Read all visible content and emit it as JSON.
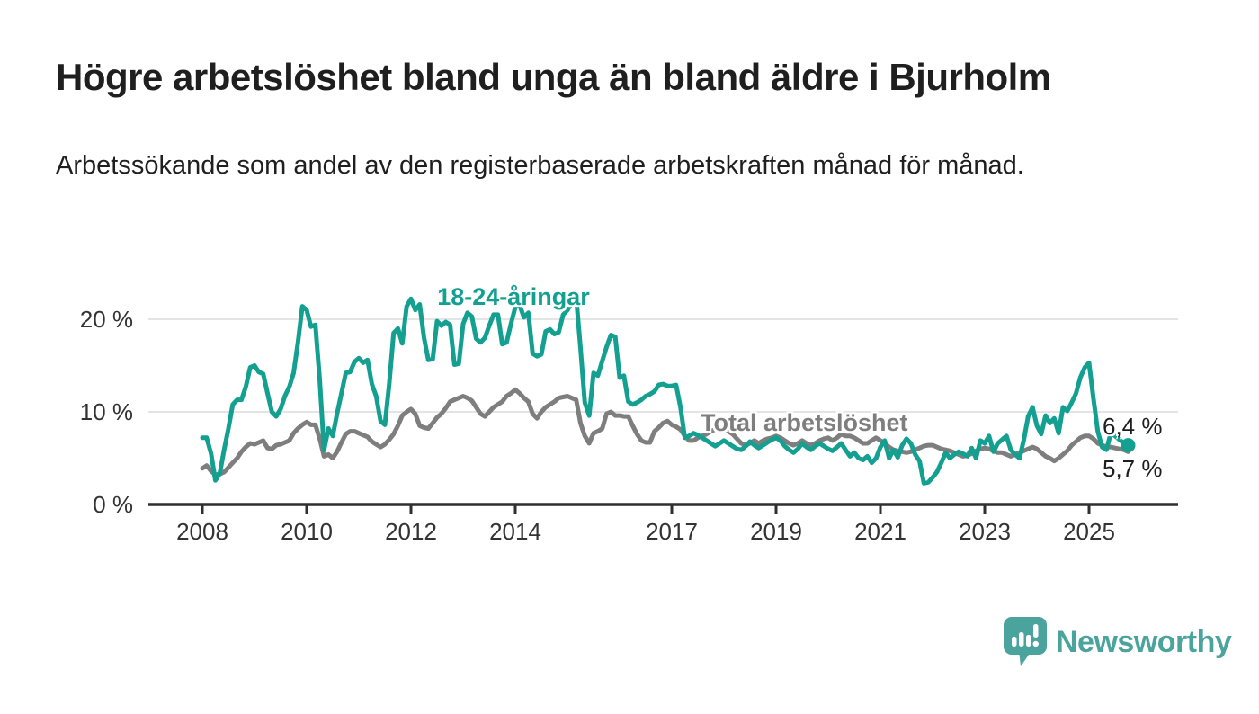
{
  "header": {
    "title": "Högre arbetslöshet bland unga än bland äldre i Bjurholm",
    "subtitle": "Arbetssökande som andel av den registerbaserade arbetskraften månad för månad."
  },
  "colors": {
    "young_teal": "#14a091",
    "total_gray": "#7e7e7e",
    "logo_teal": "#4ba39d",
    "text_dark": "#1e1e1e",
    "axis_dark": "#2f2f2f",
    "gridline_gray": "#dcdcdc"
  },
  "chart_data": {
    "type": "line",
    "title": "Högre arbetslöshet bland unga än bland äldre i Bjurholm",
    "unit": "%",
    "frequency": "monthly",
    "x_start_year": 2008,
    "x_start_month": 1,
    "x_end": "2025-10",
    "x_tick_years": [
      2008,
      2010,
      2012,
      2014,
      2017,
      2019,
      2021,
      2023,
      2025
    ],
    "y_ticks": [
      {
        "value": 0,
        "label": "0 %"
      },
      {
        "value": 10,
        "label": "10 %"
      },
      {
        "value": 20,
        "label": "20 %"
      }
    ],
    "ylim": [
      0,
      23
    ],
    "grid": "horizontal",
    "legend_position": "inline-labels",
    "series": [
      {
        "name": "Total arbetslöshet",
        "color": "#7e7e7e",
        "end_label": "5,7 %",
        "end_dot": false,
        "values": [
          3.9,
          4.2,
          3.6,
          3.2,
          3.3,
          3.5,
          4.0,
          4.5,
          5.0,
          5.7,
          6.2,
          6.6,
          6.5,
          6.7,
          6.9,
          6.1,
          6.0,
          6.4,
          6.5,
          6.7,
          6.9,
          7.7,
          8.2,
          8.6,
          8.9,
          8.6,
          8.6,
          7.1,
          5.2,
          5.4,
          5.0,
          5.7,
          6.7,
          7.6,
          7.9,
          7.9,
          7.7,
          7.5,
          7.3,
          6.8,
          6.5,
          6.2,
          6.5,
          7.0,
          7.6,
          8.5,
          9.6,
          10.0,
          10.3,
          9.8,
          8.5,
          8.3,
          8.2,
          8.8,
          9.4,
          9.8,
          10.4,
          11.1,
          11.3,
          11.5,
          11.7,
          11.5,
          11.2,
          10.5,
          9.8,
          9.5,
          10.0,
          10.5,
          10.8,
          11.1,
          11.7,
          12.0,
          12.4,
          12.0,
          11.5,
          11.1,
          9.8,
          9.3,
          10.0,
          10.5,
          10.8,
          11.1,
          11.5,
          11.6,
          11.7,
          11.5,
          11.3,
          8.8,
          7.4,
          6.6,
          7.7,
          7.9,
          8.2,
          9.8,
          10.0,
          9.6,
          9.6,
          9.5,
          9.5,
          8.5,
          7.6,
          6.9,
          6.7,
          6.7,
          7.9,
          8.3,
          8.8,
          9.0,
          8.6,
          8.4,
          8.1,
          7.4,
          6.9,
          6.9,
          7.2,
          7.4,
          7.6,
          7.9,
          8.1,
          8.2,
          8.2,
          7.9,
          7.6,
          7.1,
          6.6,
          6.4,
          6.6,
          6.9,
          6.6,
          6.9,
          7.1,
          7.2,
          7.4,
          7.2,
          6.9,
          6.6,
          6.4,
          6.6,
          6.9,
          6.6,
          6.4,
          6.6,
          6.9,
          7.1,
          7.2,
          6.9,
          7.2,
          7.6,
          7.4,
          7.4,
          7.2,
          6.9,
          6.6,
          6.6,
          6.9,
          7.2,
          6.9,
          6.6,
          6.2,
          5.9,
          5.8,
          5.7,
          5.6,
          5.7,
          5.9,
          6.1,
          6.3,
          6.4,
          6.4,
          6.2,
          6.0,
          5.9,
          5.8,
          5.6,
          5.4,
          5.2,
          5.3,
          5.5,
          5.8,
          6.0,
          6.1,
          6.0,
          5.8,
          5.6,
          5.6,
          5.4,
          5.2,
          5.4,
          5.6,
          5.8,
          6.0,
          6.2,
          6.0,
          5.6,
          5.2,
          5.0,
          4.7,
          5.0,
          5.4,
          5.8,
          6.4,
          6.8,
          7.2,
          7.4,
          7.4,
          7.1,
          6.6,
          6.4,
          6.2,
          6.2,
          6.1,
          6.0,
          5.9,
          5.7
        ]
      },
      {
        "name": "18-24-åringar",
        "color": "#14a091",
        "end_label": "6,4 %",
        "end_dot": true,
        "values": [
          7.2,
          7.2,
          5.5,
          2.6,
          3.3,
          5.9,
          8.2,
          10.8,
          11.3,
          11.3,
          12.7,
          14.8,
          15.0,
          14.3,
          14.1,
          12.0,
          10.0,
          9.5,
          10.3,
          11.7,
          12.7,
          14.2,
          17.5,
          21.4,
          21.0,
          19.2,
          19.4,
          13.5,
          5.9,
          8.2,
          7.4,
          9.8,
          12.0,
          14.2,
          14.3,
          15.4,
          15.8,
          15.3,
          15.6,
          13.0,
          11.7,
          9.0,
          8.6,
          13.0,
          18.5,
          19.0,
          17.4,
          21.4,
          22.2,
          21.0,
          21.6,
          18.0,
          15.6,
          15.7,
          19.8,
          19.3,
          19.7,
          19.4,
          15.1,
          15.2,
          19.5,
          20.7,
          20.3,
          17.9,
          17.5,
          18.0,
          19.3,
          20.5,
          20.5,
          17.3,
          17.5,
          19.5,
          21.3,
          21.5,
          20.2,
          20.7,
          16.3,
          16.0,
          16.2,
          18.7,
          18.9,
          18.4,
          18.6,
          20.5,
          21.0,
          21.8,
          22.4,
          16.9,
          11.0,
          9.6,
          14.2,
          13.9,
          15.5,
          17.0,
          18.3,
          18.1,
          13.7,
          13.9,
          11.1,
          10.8,
          11.0,
          11.3,
          11.7,
          11.9,
          12.2,
          12.9,
          13.0,
          12.8,
          12.8,
          12.9,
          10.5,
          7.2,
          7.4,
          7.7,
          7.5,
          7.2,
          6.9,
          6.6,
          6.3,
          6.6,
          6.9,
          6.6,
          6.3,
          6.0,
          5.9,
          6.3,
          6.8,
          6.4,
          6.1,
          6.4,
          6.7,
          7.0,
          7.2,
          6.9,
          6.3,
          5.9,
          5.6,
          6.0,
          6.6,
          6.2,
          5.9,
          6.3,
          6.6,
          6.3,
          6.0,
          5.8,
          6.2,
          6.6,
          5.9,
          5.2,
          5.6,
          5.0,
          4.8,
          5.2,
          4.5,
          5.0,
          6.2,
          6.9,
          5.0,
          5.9,
          5.1,
          6.4,
          7.1,
          6.6,
          5.4,
          4.7,
          2.3,
          2.4,
          2.9,
          3.5,
          4.5,
          5.6,
          5.0,
          5.4,
          5.7,
          5.5,
          5.2,
          6.1,
          5.0,
          6.9,
          6.6,
          7.4,
          5.7,
          6.6,
          7.0,
          7.4,
          5.9,
          5.4,
          5.0,
          7.0,
          9.5,
          10.5,
          8.5,
          7.6,
          9.6,
          8.8,
          9.3,
          7.7,
          10.5,
          10.1,
          11.0,
          12.0,
          13.7,
          14.8,
          15.3,
          11.5,
          7.9,
          6.2,
          5.9,
          7.7,
          7.4,
          7.0,
          6.6,
          6.4
        ]
      }
    ]
  },
  "footer": {
    "brand": "Newsworthy"
  }
}
